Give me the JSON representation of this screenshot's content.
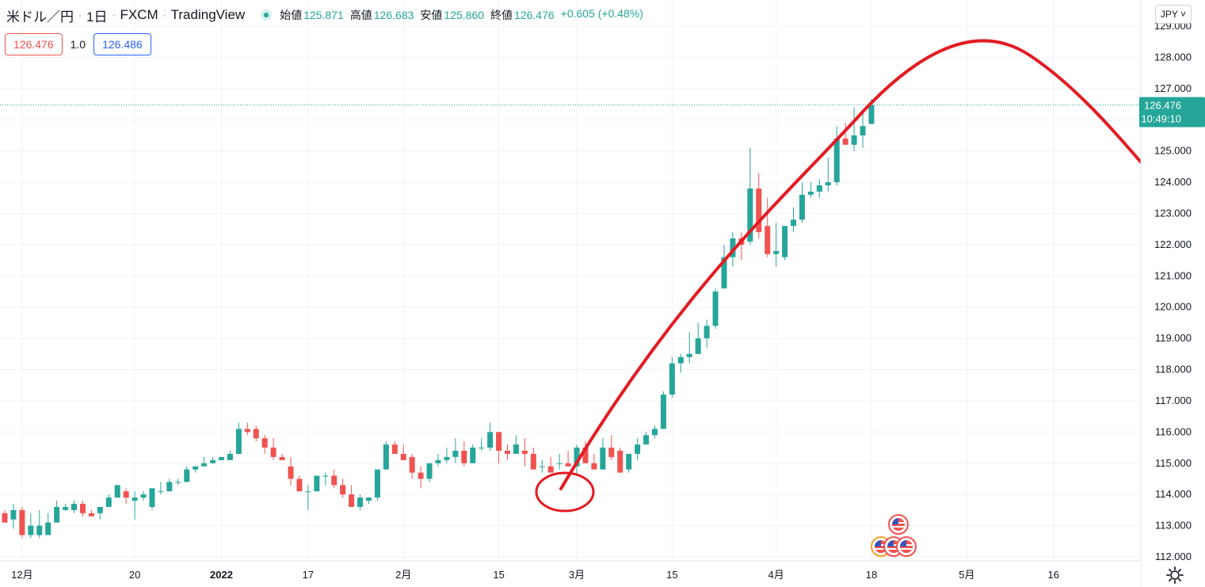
{
  "header": {
    "symbol": "米ドル／円",
    "interval": "1日",
    "source": "FXCM",
    "platform": "TradingView",
    "ohlc": {
      "open_label": "始値",
      "open": "125.871",
      "high_label": "高値",
      "high": "126.683",
      "low_label": "安値",
      "low": "125.860",
      "close_label": "終値",
      "close": "126.476",
      "change": "+0.605 (+0.48%)"
    }
  },
  "trade": {
    "sell_price": "126.476",
    "quantity": "1.0",
    "buy_price": "126.486"
  },
  "currency_button": "JPY",
  "last_price": {
    "value": "126.476",
    "countdown": "10:49:10"
  },
  "colors": {
    "up": "#26a69a",
    "down": "#ef5350",
    "annotation": "#e31b23",
    "price_line": "#26a69a"
  },
  "chart_data": {
    "type": "candlestick",
    "y_axis": {
      "range": [
        112.0,
        129.0
      ],
      "ticks": [
        "112.000",
        "113.000",
        "114.000",
        "115.000",
        "116.000",
        "117.000",
        "118.000",
        "119.000",
        "120.000",
        "121.000",
        "122.000",
        "123.000",
        "124.000",
        "125.000",
        "126.000",
        "127.000",
        "128.000",
        "129.000"
      ]
    },
    "x_axis": {
      "ticks": [
        {
          "label": "12月",
          "bar": 2
        },
        {
          "label": "20",
          "bar": 15
        },
        {
          "label": "2022",
          "bar": 25,
          "bold": true
        },
        {
          "label": "17",
          "bar": 35
        },
        {
          "label": "2月",
          "bar": 46
        },
        {
          "label": "15",
          "bar": 57
        },
        {
          "label": "3月",
          "bar": 66
        },
        {
          "label": "15",
          "bar": 77
        },
        {
          "label": "4月",
          "bar": 89
        },
        {
          "label": "18",
          "bar": 100
        },
        {
          "label": "5月",
          "bar": 111
        },
        {
          "label": "16",
          "bar": 121
        }
      ]
    },
    "candles": [
      [
        113.4,
        113.5,
        113.1,
        113.1
      ],
      [
        113.2,
        113.7,
        112.9,
        113.5
      ],
      [
        113.5,
        113.6,
        112.6,
        112.7
      ],
      [
        112.7,
        113.4,
        112.6,
        113.0
      ],
      [
        112.7,
        113.5,
        112.6,
        113.0
      ],
      [
        112.7,
        113.4,
        112.7,
        113.1
      ],
      [
        113.1,
        113.8,
        113.1,
        113.6
      ],
      [
        113.5,
        113.7,
        113.5,
        113.6
      ],
      [
        113.5,
        113.8,
        113.4,
        113.7
      ],
      [
        113.7,
        113.8,
        113.3,
        113.4
      ],
      [
        113.4,
        113.5,
        113.3,
        113.3
      ],
      [
        113.4,
        113.6,
        113.2,
        113.6
      ],
      [
        113.6,
        114.0,
        113.6,
        113.9
      ],
      [
        113.9,
        114.3,
        113.9,
        114.3
      ],
      [
        114.1,
        114.2,
        113.7,
        113.9
      ],
      [
        113.8,
        114.1,
        113.2,
        113.9
      ],
      [
        113.9,
        114.1,
        113.8,
        114.0
      ],
      [
        113.6,
        114.2,
        113.5,
        114.2
      ],
      [
        114.1,
        114.4,
        114.0,
        114.1
      ],
      [
        114.1,
        114.5,
        114.1,
        114.4
      ],
      [
        114.4,
        114.5,
        114.3,
        114.4
      ],
      [
        114.4,
        114.9,
        114.4,
        114.8
      ],
      [
        114.8,
        114.9,
        114.7,
        114.9
      ],
      [
        114.9,
        115.2,
        114.9,
        115.0
      ],
      [
        115.0,
        115.2,
        115.0,
        115.1
      ],
      [
        115.1,
        115.2,
        115.1,
        115.2
      ],
      [
        115.1,
        115.4,
        115.1,
        115.3
      ],
      [
        115.3,
        116.3,
        115.3,
        116.1
      ],
      [
        116.1,
        116.3,
        115.9,
        116.0
      ],
      [
        116.1,
        116.2,
        115.7,
        115.8
      ],
      [
        115.8,
        115.9,
        115.3,
        115.5
      ],
      [
        115.5,
        115.8,
        115.1,
        115.2
      ],
      [
        115.2,
        115.3,
        115.1,
        115.1
      ],
      [
        114.9,
        115.2,
        114.3,
        114.5
      ],
      [
        114.5,
        114.6,
        114.1,
        114.1
      ],
      [
        114.1,
        114.3,
        113.5,
        114.1
      ],
      [
        114.1,
        114.6,
        114.1,
        114.6
      ],
      [
        114.6,
        114.7,
        114.3,
        114.6
      ],
      [
        114.6,
        114.8,
        114.2,
        114.3
      ],
      [
        114.3,
        114.5,
        113.9,
        114.0
      ],
      [
        114.0,
        114.3,
        113.6,
        113.6
      ],
      [
        113.6,
        114.0,
        113.5,
        113.9
      ],
      [
        113.8,
        113.9,
        113.7,
        113.9
      ],
      [
        113.9,
        114.8,
        113.8,
        114.8
      ],
      [
        114.8,
        115.7,
        114.8,
        115.6
      ],
      [
        115.6,
        115.7,
        115.3,
        115.3
      ],
      [
        115.3,
        115.6,
        115.1,
        115.1
      ],
      [
        115.2,
        115.3,
        114.5,
        114.7
      ],
      [
        114.7,
        114.9,
        114.2,
        114.5
      ],
      [
        114.5,
        115.0,
        114.4,
        115.0
      ],
      [
        115.0,
        115.3,
        114.9,
        115.1
      ],
      [
        115.1,
        115.5,
        115.0,
        115.2
      ],
      [
        115.2,
        115.8,
        115.0,
        115.4
      ],
      [
        115.4,
        115.7,
        114.9,
        115.0
      ],
      [
        115.0,
        115.6,
        115.0,
        115.5
      ],
      [
        115.5,
        115.8,
        115.4,
        115.5
      ],
      [
        115.5,
        116.3,
        115.4,
        116.0
      ],
      [
        116.0,
        116.0,
        115.0,
        115.4
      ],
      [
        115.4,
        115.6,
        115.1,
        115.3
      ],
      [
        115.3,
        115.9,
        115.3,
        115.6
      ],
      [
        115.4,
        115.8,
        114.9,
        115.3
      ],
      [
        115.3,
        115.5,
        114.9,
        114.8
      ],
      [
        114.9,
        115.1,
        114.7,
        114.9
      ],
      [
        114.9,
        115.2,
        114.7,
        114.7
      ],
      [
        115.0,
        115.3,
        114.8,
        115.0
      ],
      [
        115.0,
        115.4,
        114.9,
        114.9
      ],
      [
        114.9,
        115.6,
        114.6,
        115.5
      ],
      [
        115.5,
        115.7,
        115.0,
        115.0
      ],
      [
        115.0,
        115.3,
        114.8,
        114.8
      ],
      [
        114.8,
        115.8,
        114.8,
        115.5
      ],
      [
        115.5,
        115.9,
        115.1,
        115.2
      ],
      [
        115.4,
        115.5,
        114.7,
        114.7
      ],
      [
        114.8,
        115.3,
        114.7,
        115.3
      ],
      [
        115.3,
        115.8,
        115.1,
        115.6
      ],
      [
        115.6,
        116.0,
        115.6,
        115.9
      ],
      [
        115.9,
        116.2,
        115.8,
        116.1
      ],
      [
        116.1,
        117.3,
        116.1,
        117.2
      ],
      [
        117.2,
        118.4,
        117.1,
        118.2
      ],
      [
        118.2,
        118.5,
        117.9,
        118.4
      ],
      [
        118.4,
        119.2,
        118.2,
        118.5
      ],
      [
        118.5,
        119.5,
        118.5,
        119.0
      ],
      [
        119.0,
        119.6,
        118.7,
        119.4
      ],
      [
        119.4,
        120.6,
        119.3,
        120.5
      ],
      [
        120.6,
        122.0,
        120.6,
        121.6
      ],
      [
        121.6,
        122.4,
        121.3,
        122.2
      ],
      [
        122.2,
        122.4,
        121.5,
        122.0
      ],
      [
        122.1,
        125.1,
        122.0,
        123.8
      ],
      [
        123.8,
        124.3,
        122.2,
        122.4
      ],
      [
        122.6,
        123.5,
        121.6,
        121.7
      ],
      [
        121.7,
        122.7,
        121.3,
        121.8
      ],
      [
        121.6,
        122.6,
        121.5,
        122.6
      ],
      [
        122.6,
        123.2,
        122.4,
        122.8
      ],
      [
        122.8,
        124.0,
        122.7,
        123.6
      ],
      [
        123.6,
        124.0,
        123.5,
        123.7
      ],
      [
        123.7,
        124.1,
        123.5,
        123.9
      ],
      [
        123.9,
        124.8,
        123.7,
        124.0
      ],
      [
        124.0,
        125.8,
        123.9,
        125.4
      ],
      [
        125.4,
        125.9,
        125.2,
        125.2
      ],
      [
        125.2,
        126.4,
        125.0,
        125.5
      ],
      [
        125.5,
        126.2,
        125.1,
        125.8
      ],
      [
        125.87,
        126.683,
        125.86,
        126.476
      ]
    ],
    "annotations": {
      "arc": "hand-drawn red trend curve peaking near 128.5 in late April",
      "circle": "red circle near late February low (~114.2)"
    },
    "events": [
      "us-flag-icon",
      "us-flag-icon",
      "us-flag-icon",
      "us-flag-icon"
    ]
  }
}
